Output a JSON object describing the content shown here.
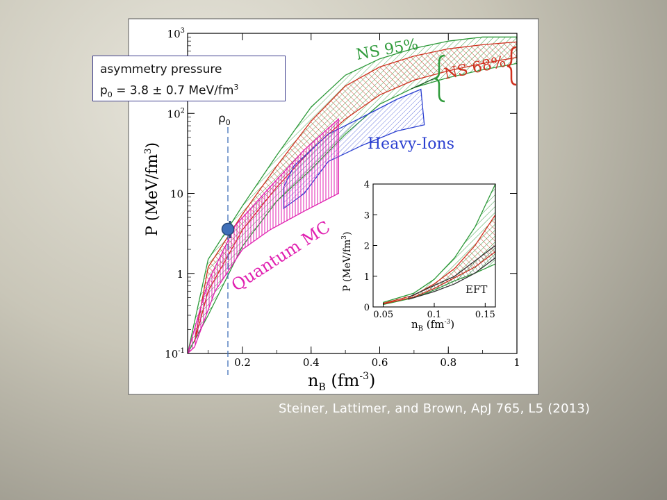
{
  "callout": {
    "line1": "asymmetry pressure",
    "line2_prefix": "p",
    "line2_sub": "0",
    "line2_value": " = 3.8 ± 0.7 MeV/fm",
    "line2_sup": "3"
  },
  "rho_marker": {
    "symbol": "ρ",
    "sub": "0",
    "n": 0.16,
    "P": 3.8
  },
  "citation": "Steiner, Lattimer, and Brown, ApJ 765, L5 (2013)",
  "colors": {
    "ns95": "#2e9a3a",
    "ns68": "#d0301e",
    "heavy_ions": "#2a3fd0",
    "quantum_mc": "#e020b0",
    "eft": "#333333",
    "marker": "#3f6fb8"
  },
  "chart_data": [
    {
      "type": "area",
      "xlabel": "n",
      "xlabel_sub": "B",
      "xlabel_unit": " (fm",
      "xlabel_unit_sup": "-3",
      "xlabel_close": ")",
      "ylabel": "P (MeV/fm",
      "ylabel_sup": "3",
      "ylabel_close": ")",
      "yscale": "log",
      "xlim": [
        0.04,
        1.0
      ],
      "ylim": [
        0.1,
        1000
      ],
      "x_ticks": [
        "0.2",
        "0.4",
        "0.6",
        "0.8",
        "1"
      ],
      "y_ticks": [
        {
          "base": "10",
          "exp": "-1"
        },
        {
          "base": "1",
          "exp": ""
        },
        {
          "base": "10",
          "exp": ""
        },
        {
          "base": "10",
          "exp": "2"
        },
        {
          "base": "10",
          "exp": "3"
        }
      ],
      "labels": {
        "ns95": "NS 95%",
        "ns68": "NS 68%",
        "heavy_ions": "Heavy-Ions",
        "quantum_mc": "Quantum MC"
      },
      "series": [
        {
          "name": "NS 95%",
          "lower": [
            [
              0.04,
              0.1
            ],
            [
              0.1,
              0.3
            ],
            [
              0.2,
              2.2
            ],
            [
              0.3,
              8
            ],
            [
              0.4,
              20
            ],
            [
              0.5,
              55
            ],
            [
              0.6,
              130
            ],
            [
              0.7,
              210
            ],
            [
              0.8,
              280
            ],
            [
              0.9,
              350
            ],
            [
              1.0,
              420
            ]
          ],
          "upper": [
            [
              0.04,
              0.1
            ],
            [
              0.1,
              1.5
            ],
            [
              0.2,
              7
            ],
            [
              0.3,
              30
            ],
            [
              0.4,
              120
            ],
            [
              0.5,
              300
            ],
            [
              0.6,
              480
            ],
            [
              0.7,
              650
            ],
            [
              0.8,
              800
            ],
            [
              0.9,
              900
            ],
            [
              1.0,
              900
            ]
          ]
        },
        {
          "name": "NS 68%",
          "lower": [
            [
              0.06,
              0.14
            ],
            [
              0.1,
              0.6
            ],
            [
              0.2,
              3.5
            ],
            [
              0.3,
              12
            ],
            [
              0.4,
              35
            ],
            [
              0.5,
              85
            ],
            [
              0.6,
              170
            ],
            [
              0.7,
              260
            ],
            [
              0.8,
              340
            ],
            [
              0.9,
              420
            ],
            [
              1.0,
              500
            ]
          ],
          "upper": [
            [
              0.06,
              0.14
            ],
            [
              0.1,
              1.2
            ],
            [
              0.2,
              5.5
            ],
            [
              0.3,
              22
            ],
            [
              0.4,
              80
            ],
            [
              0.5,
              220
            ],
            [
              0.6,
              380
            ],
            [
              0.7,
              520
            ],
            [
              0.8,
              640
            ],
            [
              0.9,
              720
            ],
            [
              1.0,
              780
            ]
          ]
        },
        {
          "name": "Heavy-Ions",
          "polygon": [
            [
              0.32,
              12
            ],
            [
              0.35,
              22
            ],
            [
              0.45,
              55
            ],
            [
              0.55,
              90
            ],
            [
              0.65,
              150
            ],
            [
              0.72,
              200
            ],
            [
              0.73,
              72
            ],
            [
              0.65,
              60
            ],
            [
              0.55,
              40
            ],
            [
              0.45,
              25
            ],
            [
              0.38,
              10
            ],
            [
              0.32,
              6.5
            ]
          ]
        },
        {
          "name": "Quantum MC",
          "polygon": [
            [
              0.04,
              0.1
            ],
            [
              0.1,
              0.8
            ],
            [
              0.18,
              4
            ],
            [
              0.28,
              12
            ],
            [
              0.38,
              35
            ],
            [
              0.48,
              85
            ],
            [
              0.48,
              10
            ],
            [
              0.38,
              6
            ],
            [
              0.28,
              3.5
            ],
            [
              0.2,
              2
            ],
            [
              0.12,
              0.6
            ],
            [
              0.06,
              0.12
            ]
          ]
        }
      ]
    },
    {
      "type": "area",
      "inset": true,
      "xlabel": "n",
      "xlabel_sub": "B",
      "xlabel_unit": " (fm",
      "xlabel_unit_sup": "-3",
      "xlabel_close": ")",
      "ylabel": "P (MeV/fm",
      "ylabel_sup": "3",
      "ylabel_close": ")",
      "xlim": [
        0.04,
        0.16
      ],
      "ylim": [
        0,
        4
      ],
      "x_ticks": [
        "0.05",
        "0.1",
        "0.15"
      ],
      "y_ticks": [
        "0",
        "1",
        "2",
        "3",
        "4"
      ],
      "eft_label": "EFT",
      "series": [
        {
          "name": "NS 95%",
          "lower": [
            [
              0.05,
              0.08
            ],
            [
              0.08,
              0.3
            ],
            [
              0.1,
              0.55
            ],
            [
              0.12,
              0.85
            ],
            [
              0.14,
              1.1
            ],
            [
              0.16,
              1.4
            ]
          ],
          "upper": [
            [
              0.05,
              0.15
            ],
            [
              0.08,
              0.45
            ],
            [
              0.1,
              0.9
            ],
            [
              0.12,
              1.6
            ],
            [
              0.14,
              2.6
            ],
            [
              0.16,
              4.0
            ]
          ]
        },
        {
          "name": "NS 68%",
          "lower": [
            [
              0.05,
              0.1
            ],
            [
              0.08,
              0.32
            ],
            [
              0.1,
              0.6
            ],
            [
              0.12,
              0.95
            ],
            [
              0.14,
              1.3
            ],
            [
              0.16,
              1.8
            ]
          ],
          "upper": [
            [
              0.05,
              0.12
            ],
            [
              0.08,
              0.38
            ],
            [
              0.1,
              0.75
            ],
            [
              0.12,
              1.25
            ],
            [
              0.14,
              2.0
            ],
            [
              0.16,
              3.0
            ]
          ]
        },
        {
          "name": "EFT",
          "lower": [
            [
              0.075,
              0.25
            ],
            [
              0.1,
              0.5
            ],
            [
              0.12,
              0.75
            ],
            [
              0.14,
              1.1
            ],
            [
              0.16,
              1.6
            ]
          ],
          "upper": [
            [
              0.075,
              0.32
            ],
            [
              0.1,
              0.7
            ],
            [
              0.12,
              1.0
            ],
            [
              0.14,
              1.5
            ],
            [
              0.16,
              2.0
            ]
          ]
        }
      ]
    }
  ]
}
